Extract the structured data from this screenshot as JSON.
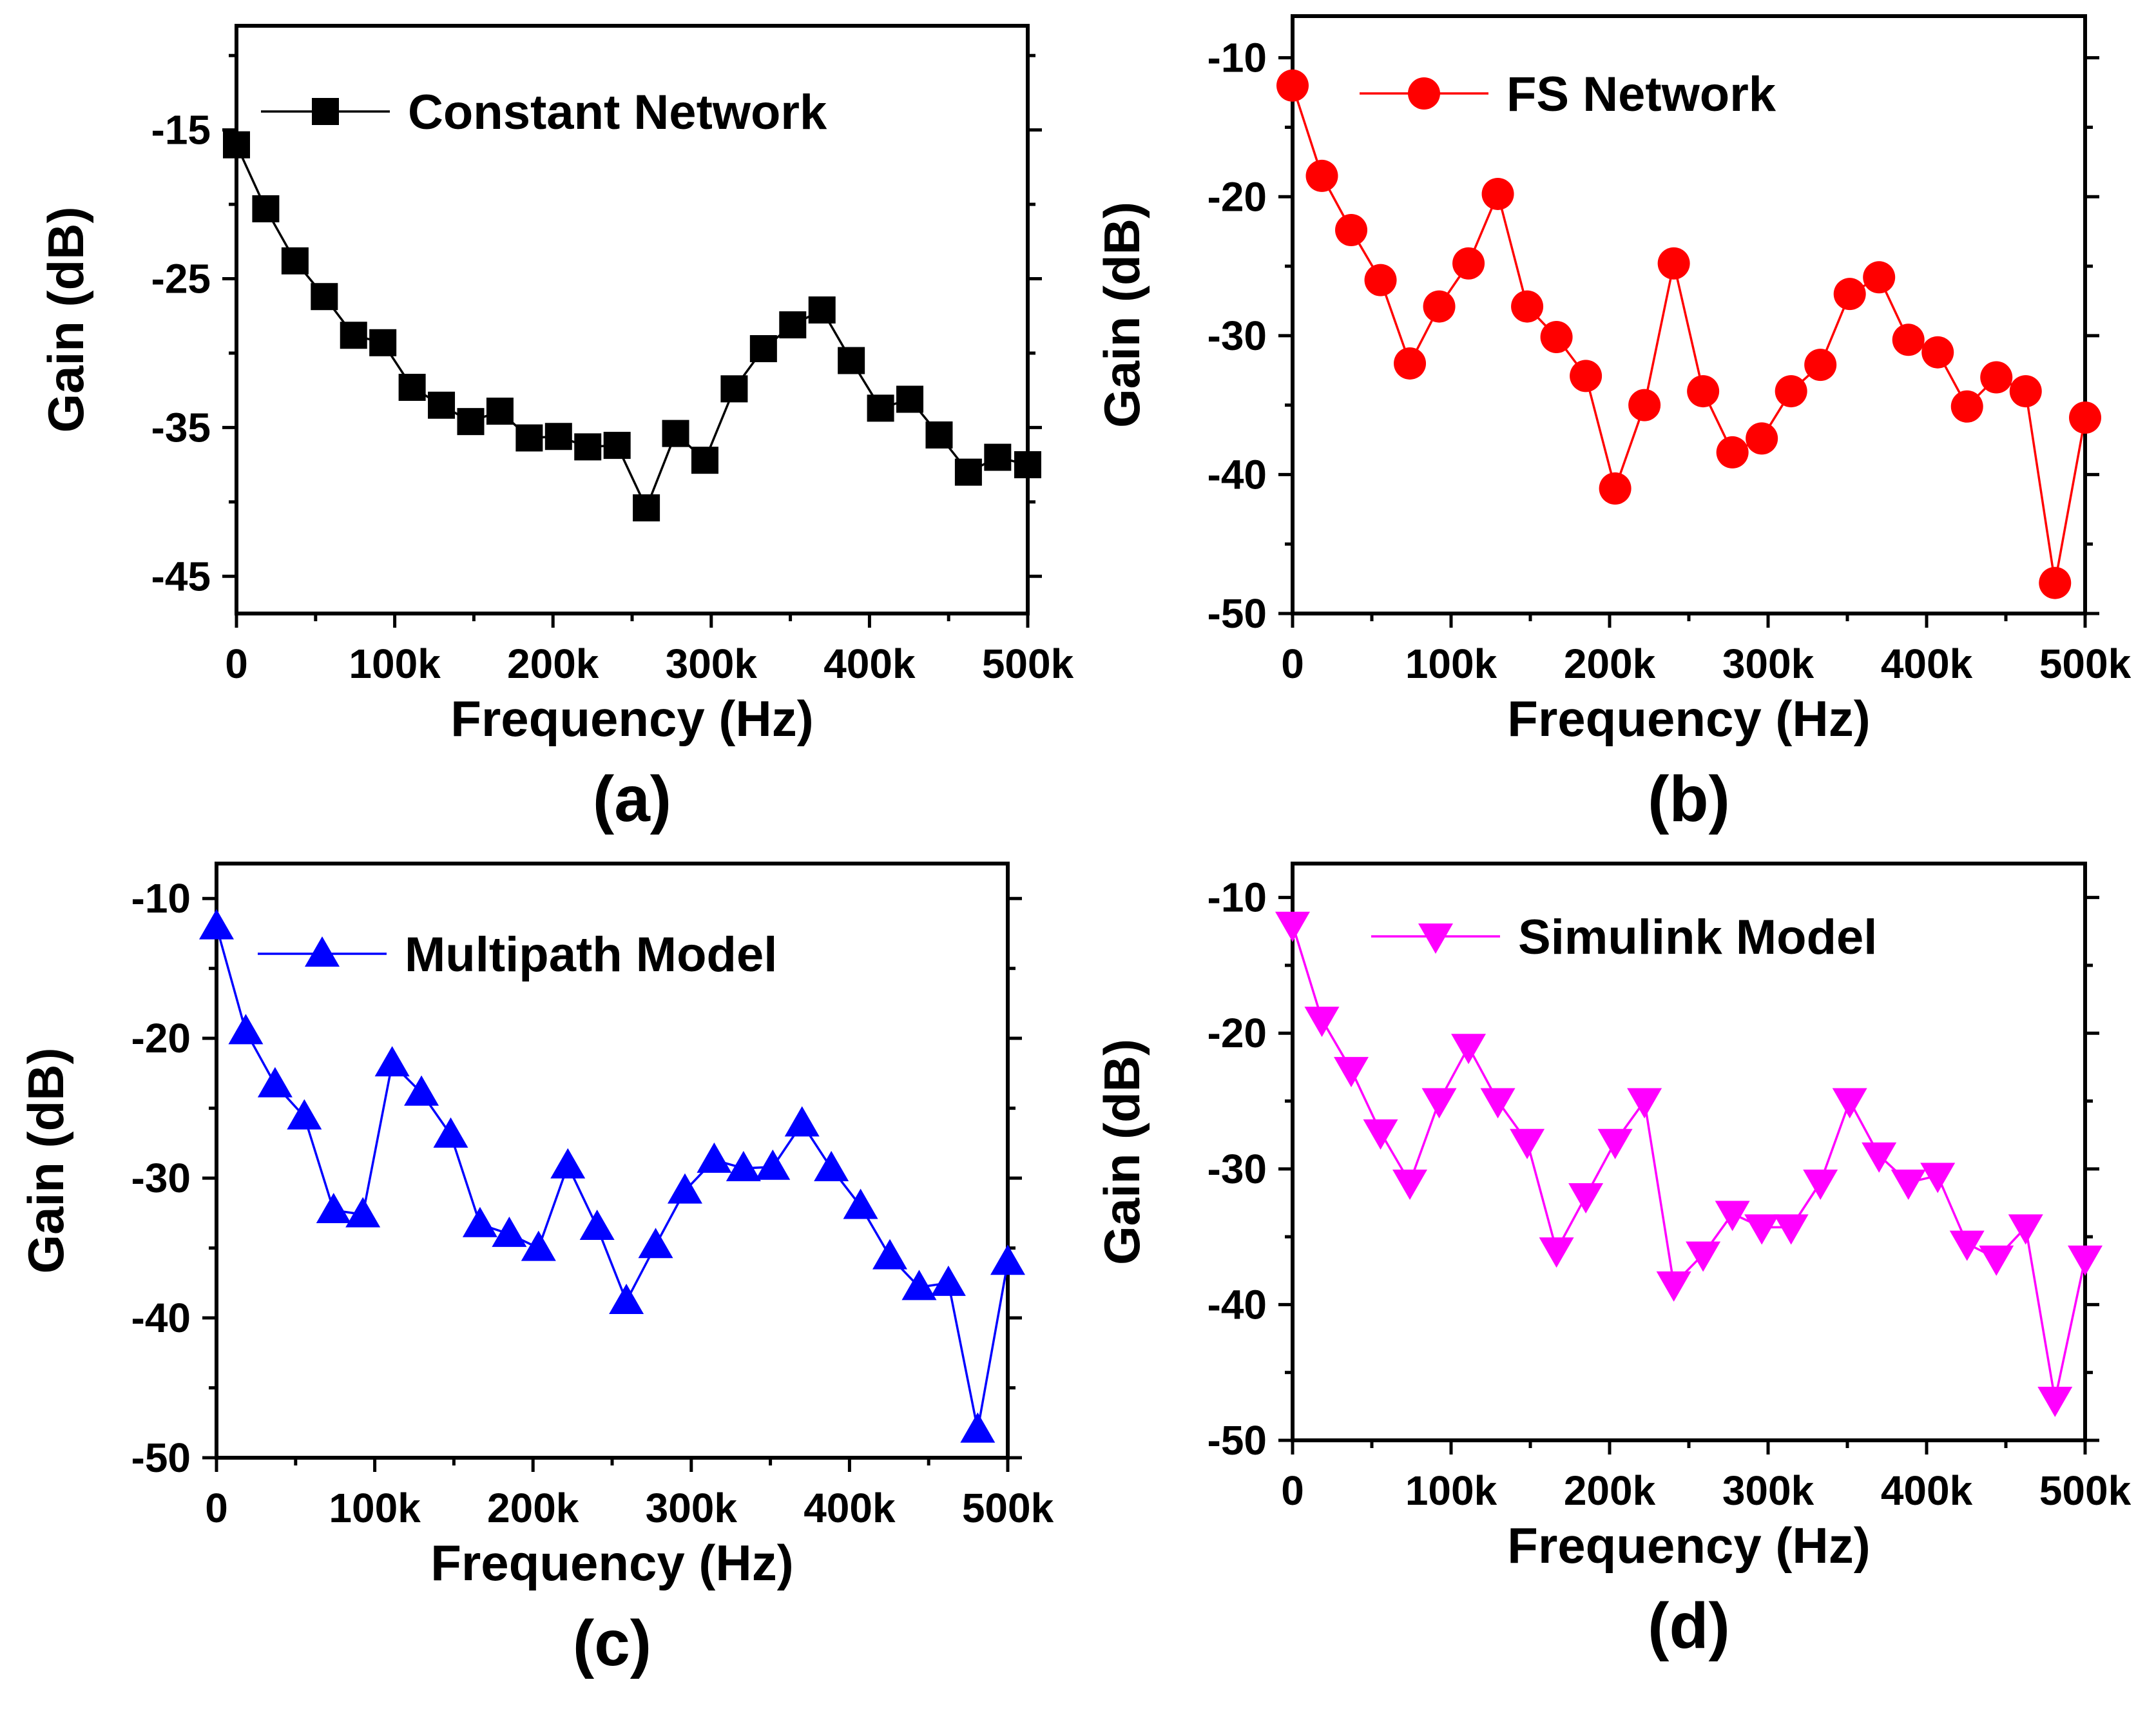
{
  "chart_data": [
    {
      "type": "line",
      "panel": "(a)",
      "title": "",
      "xlabel": "Frequency (Hz)",
      "ylabel": "Gain (dB)",
      "xlim": [
        0,
        500000
      ],
      "ylim": [
        -47.5,
        -8
      ],
      "yticks": [
        -15,
        -25,
        -35,
        -45
      ],
      "xticks": [
        0,
        100000,
        200000,
        300000,
        400000,
        500000
      ],
      "xtick_labels": [
        "0",
        "100k",
        "200k",
        "300k",
        "400k",
        "500k"
      ],
      "legend_position": "top",
      "series": [
        {
          "name": "Constant Network",
          "color": "#000000",
          "marker": "square",
          "x": [
            0,
            18500,
            37000,
            55500,
            74000,
            92500,
            111000,
            129500,
            148000,
            166500,
            185000,
            203500,
            222000,
            240500,
            259000,
            277500,
            296000,
            314500,
            333000,
            351500,
            370000,
            388500,
            407000,
            425500,
            444000,
            462500,
            481000,
            500000
          ],
          "values": [
            -16,
            -20.3,
            -23.8,
            -26.2,
            -28.8,
            -29.3,
            -32.3,
            -33.5,
            -34.6,
            -33.9,
            -35.7,
            -35.6,
            -36.3,
            -36.2,
            -40.4,
            -35.4,
            -37.2,
            -32.4,
            -29.7,
            -28.1,
            -27.1,
            -30.5,
            -33.7,
            -33.1,
            -35.5,
            -38,
            -37,
            -37.5
          ]
        }
      ]
    },
    {
      "type": "line",
      "panel": "(b)",
      "title": "",
      "xlabel": "Frequency (Hz)",
      "ylabel": "Gain (dB)",
      "xlim": [
        0,
        500000
      ],
      "ylim": [
        -50,
        -7
      ],
      "yticks": [
        -10,
        -20,
        -30,
        -40,
        -50
      ],
      "xticks": [
        0,
        100000,
        200000,
        300000,
        400000,
        500000
      ],
      "xtick_labels": [
        "0",
        "100k",
        "200k",
        "300k",
        "400k",
        "500k"
      ],
      "legend_position": "top",
      "series": [
        {
          "name": "FS Network",
          "color": "#ff0000",
          "marker": "circle",
          "x": [
            0,
            18500,
            37000,
            55500,
            74000,
            92500,
            111000,
            129500,
            148000,
            166500,
            185000,
            203500,
            222000,
            240500,
            259000,
            277500,
            296000,
            314500,
            333000,
            351500,
            370000,
            388500,
            407000,
            425500,
            444000,
            462500,
            481000,
            500000
          ],
          "values": [
            -12,
            -18.5,
            -22.4,
            -26,
            -32,
            -27.9,
            -24.8,
            -19.8,
            -27.9,
            -30.1,
            -32.9,
            -41,
            -35,
            -24.8,
            -34,
            -38.4,
            -37.4,
            -34,
            -32.1,
            -27,
            -25.8,
            -30.3,
            -31.2,
            -35.1,
            -33,
            -34,
            -47.8,
            -35.9
          ]
        }
      ]
    },
    {
      "type": "line",
      "panel": "(c)",
      "title": "",
      "xlabel": "Frequency (Hz)",
      "ylabel": "Gain (dB)",
      "xlim": [
        0,
        500000
      ],
      "ylim": [
        -50,
        -7.5
      ],
      "yticks": [
        -10,
        -20,
        -30,
        -40,
        -50
      ],
      "xticks": [
        0,
        100000,
        200000,
        300000,
        400000,
        500000
      ],
      "xtick_labels": [
        "0",
        "100k",
        "200k",
        "300k",
        "400k",
        "500k"
      ],
      "legend_position": "top",
      "series": [
        {
          "name": "Multipath Model",
          "color": "#0000ff",
          "marker": "triangle-up",
          "x": [
            0,
            18500,
            37000,
            55500,
            74000,
            92500,
            111000,
            129500,
            148000,
            166500,
            185000,
            203500,
            222000,
            240500,
            259000,
            277500,
            296000,
            314500,
            333000,
            351500,
            370000,
            388500,
            407000,
            425500,
            444000,
            462500,
            481000,
            500000
          ],
          "values": [
            -12,
            -19.5,
            -23.3,
            -25.6,
            -32.3,
            -32.6,
            -21.8,
            -23.9,
            -26.9,
            -33.3,
            -34,
            -35,
            -29.1,
            -33.5,
            -38.8,
            -34.8,
            -30.9,
            -28.7,
            -29.3,
            -29.2,
            -26.1,
            -29.3,
            -32,
            -35.6,
            -37.8,
            -37.5,
            -48,
            -36
          ]
        }
      ]
    },
    {
      "type": "line",
      "panel": "(d)",
      "title": "",
      "xlabel": "Frequency (Hz)",
      "ylabel": "Gain (dB)",
      "xlim": [
        0,
        500000
      ],
      "ylim": [
        -50,
        -7.5
      ],
      "yticks": [
        -10,
        -20,
        -30,
        -40,
        -50
      ],
      "xticks": [
        0,
        100000,
        200000,
        300000,
        400000,
        500000
      ],
      "xtick_labels": [
        "0",
        "100k",
        "200k",
        "300k",
        "400k",
        "500k"
      ],
      "legend_position": "top",
      "series": [
        {
          "name": "Simulink Model",
          "color": "#ff00ff",
          "marker": "triangle-down",
          "x": [
            0,
            18500,
            37000,
            55500,
            74000,
            92500,
            111000,
            129500,
            148000,
            166500,
            185000,
            203500,
            222000,
            240500,
            259000,
            277500,
            296000,
            314500,
            333000,
            351500,
            370000,
            388500,
            407000,
            425500,
            444000,
            462500,
            481000,
            500000
          ],
          "values": [
            -12,
            -19,
            -22.7,
            -27.3,
            -31,
            -25,
            -21,
            -25,
            -28,
            -36,
            -32,
            -28,
            -25,
            -38.5,
            -36.3,
            -33.3,
            -34.3,
            -34.3,
            -31,
            -25,
            -29,
            -31,
            -30.5,
            -35.5,
            -36.6,
            -34.3,
            -47,
            -36.6
          ]
        }
      ]
    }
  ]
}
